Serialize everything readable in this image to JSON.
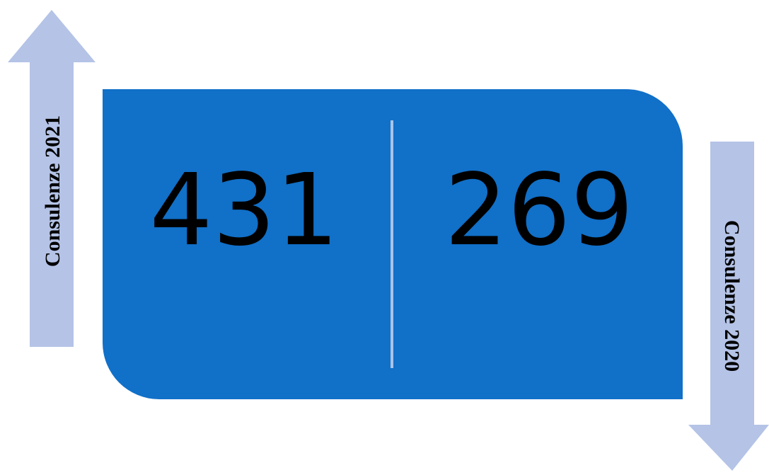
{
  "left": {
    "value": "431",
    "label": "Consulenze 2021"
  },
  "right": {
    "value": "269",
    "label": "Consulenze 2020"
  }
}
